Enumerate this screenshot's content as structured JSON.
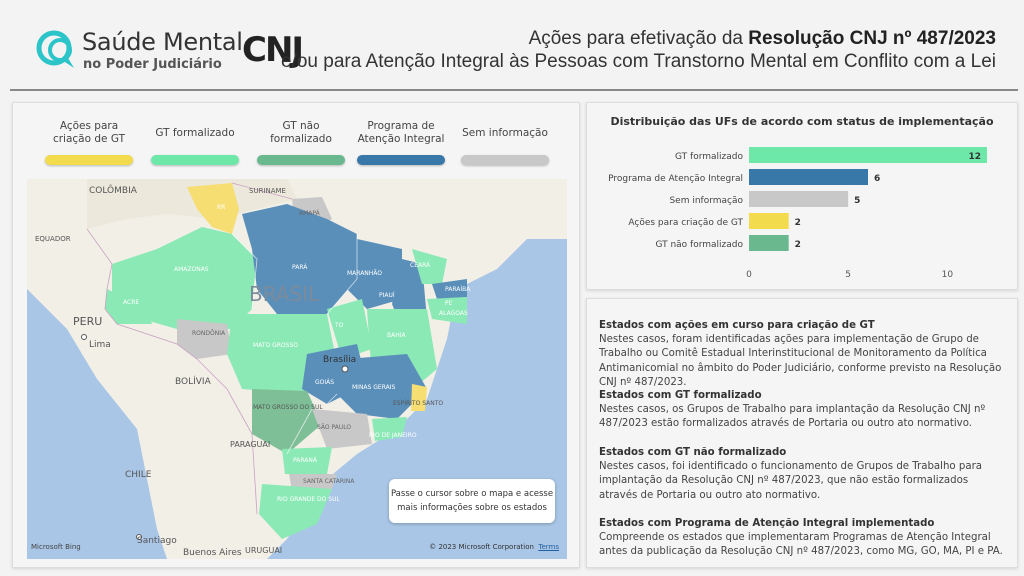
{
  "header": {
    "logo_title": "Saúde Mental",
    "logo_subtitle": "no Poder Judiciário",
    "cnj_logo": "CNJ",
    "title_line1_prefix": "Ações para efetivação da ",
    "title_line1_bold": "Resolução CNJ nº 487/2023",
    "title_line2": "e/ou para Atenção Integral às Pessoas com Transtorno Mental em Conflito com a Lei"
  },
  "legend": [
    {
      "label": "Ações para criação de GT",
      "color": "#f2dc4e"
    },
    {
      "label": "GT formalizado",
      "color": "#6ee8a8"
    },
    {
      "label": "GT não formalizado",
      "color": "#69b88e"
    },
    {
      "label": "Programa de Atenção Integral",
      "color": "#3878a8"
    },
    {
      "label": "Sem informação",
      "color": "#c8c8c8"
    }
  ],
  "map": {
    "labels": {
      "colombia": "COLÔMBIA",
      "equador": "EQUADOR",
      "peru": "PERU",
      "lima": "Lima",
      "bolivia": "BOLÍVIA",
      "chile": "CHILE",
      "santiago": "Santiago",
      "buenos_aires": "Buenos Aires",
      "uruguai": "URUGUAI",
      "paraguai": "PARAGUAI",
      "suriname": "SURINAME",
      "brasil": "BRASIL",
      "brasilia": "Brasília",
      "rr": "RR",
      "amapa": "AMAPÁ",
      "amazonas": "AMAZONAS",
      "acre": "ACRE",
      "rondonia": "RONDÔNIA",
      "mato_grosso": "MATO GROSSO",
      "para": "PARÁ",
      "maranhao": "MARANHÃO",
      "ceara": "CEARÁ",
      "piaui": "PIAUÍ",
      "paraiba": "PARAÍBA",
      "pe": "PE",
      "alagoas": "ALAGOAS",
      "to": "TO",
      "bahia": "BAHIA",
      "goias": "GOIÁS",
      "minas": "MINAS GERAIS",
      "ms": "MATO GROSSO DO SUL",
      "es": "ESPÍRITO SANTO",
      "sp": "SÃO PAULO",
      "rj": "RIO DE JANEIRO",
      "parana": "PARANÁ",
      "sc": "SANTA CATARINA",
      "rs": "RIO GRANDE DO SUL"
    },
    "tooltip": "Passe o cursor sobre o mapa e acesse mais informações sobre os estados",
    "bing": "Microsoft Bing",
    "copyright": "© 2023 Microsoft Corporation",
    "terms": "Terms"
  },
  "chart_data": {
    "type": "bar",
    "title": "Distribuição das UFs de acordo com status de implementação",
    "categories": [
      "GT formalizado",
      "Programa de Atenção Integral",
      "Sem informação",
      "Ações para criação de GT",
      "GT não formalizado"
    ],
    "values": [
      12,
      6,
      5,
      2,
      2
    ],
    "colors": [
      "#6ee8a8",
      "#3878a8",
      "#c8c8c8",
      "#f2dc4e",
      "#69b88e"
    ],
    "xticks": [
      0,
      5,
      10
    ],
    "xlim": [
      0,
      12
    ],
    "orientation": "horizontal",
    "grid": false
  },
  "sections": [
    {
      "title": "Estados com ações em curso para criação de GT",
      "body": "Nestes casos, foram identificadas ações para implementação de Grupo de Trabalho ou Comitê Estadual Interinstitucional de Monitoramento da Política Antimanicomial no âmbito do Poder Judiciário, conforme previsto na Resolução CNJ nº 487/2023."
    },
    {
      "title": "Estados com GT formalizado",
      "body": "Nestes casos, os Grupos de Trabalho para implantação da Resolução CNJ nº 487/2023 estão formalizados através de Portaria ou outro ato normativo."
    },
    {
      "title": "Estados com GT não formalizado",
      "body": "Nestes casos, foi identificado o funcionamento de Grupos de Trabalho para implantação da Resolução CNJ nº 487/2023, que não estão formalizados através de Portaria ou outro ato normativo."
    },
    {
      "title": "Estados com Programa de Atenção Integral implementado",
      "body": "Compreende os estados que implementaram Programas de Atenção Integral antes da publicação da Resolução CNJ nº 487/2023, como MG, GO, MA, PI e PA."
    }
  ]
}
